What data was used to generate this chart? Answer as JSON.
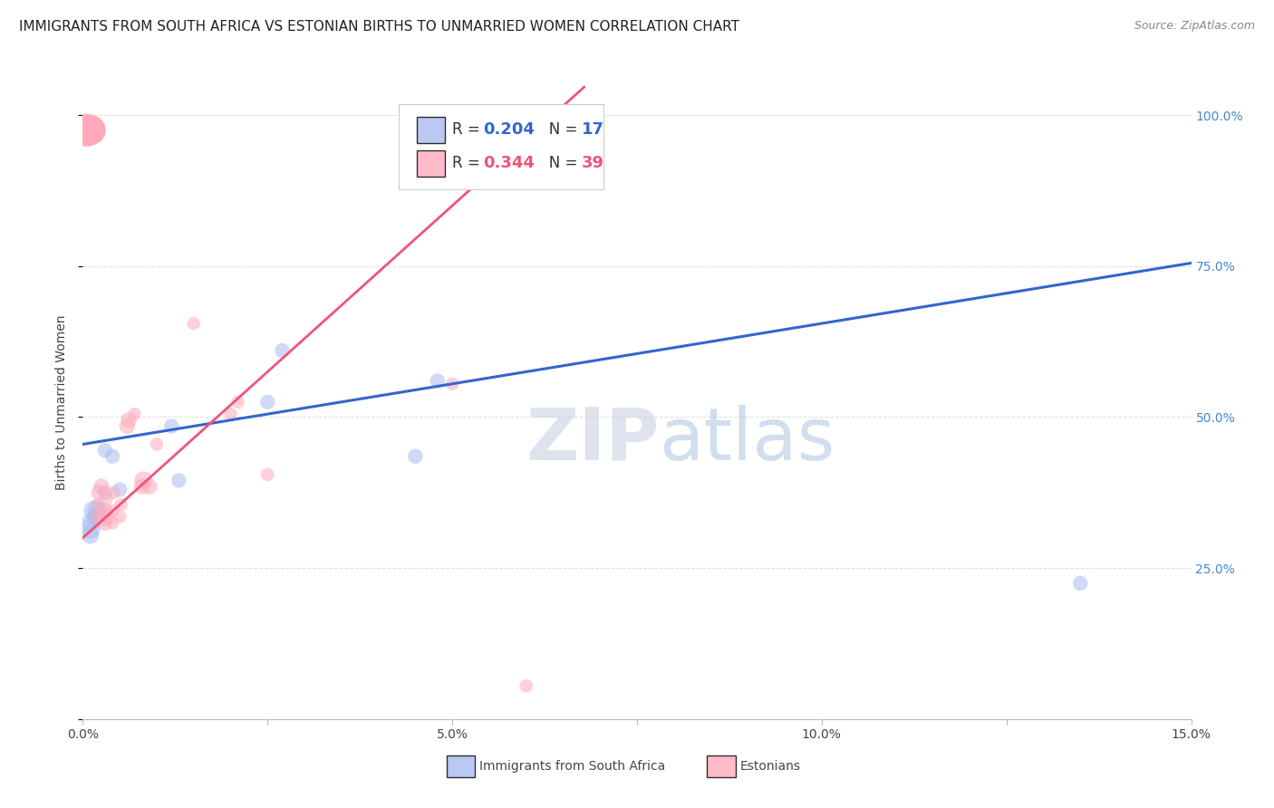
{
  "title": "IMMIGRANTS FROM SOUTH AFRICA VS ESTONIAN BIRTHS TO UNMARRIED WOMEN CORRELATION CHART",
  "source": "Source: ZipAtlas.com",
  "ylabel": "Births to Unmarried Women",
  "xlim": [
    0.0,
    0.15
  ],
  "ylim": [
    0.0,
    1.05
  ],
  "xticks": [
    0.0,
    0.025,
    0.05,
    0.075,
    0.1,
    0.125,
    0.15
  ],
  "xticklabels": [
    "0.0%",
    "",
    "5.0%",
    "",
    "10.0%",
    "",
    "15.0%"
  ],
  "yticks": [
    0.0,
    0.25,
    0.5,
    0.75,
    1.0
  ],
  "yticklabels": [
    "",
    "25.0%",
    "50.0%",
    "75.0%",
    "100.0%"
  ],
  "grid_color": "#e0e0e0",
  "blue_color": "#aabbee",
  "pink_color": "#ffaabb",
  "blue_line_color": "#3366cc",
  "pink_line_color": "#ee5577",
  "R_blue": 0.204,
  "N_blue": 17,
  "R_pink": 0.344,
  "N_pink": 39,
  "blue_intercept": 0.455,
  "blue_slope": 2.0,
  "pink_intercept": 0.3,
  "pink_slope": 11.0,
  "blue_x": [
    0.001,
    0.001,
    0.001,
    0.0015,
    0.002,
    0.002,
    0.003,
    0.003,
    0.004,
    0.005,
    0.012,
    0.013,
    0.025,
    0.027,
    0.045,
    0.048,
    0.135
  ],
  "blue_y": [
    0.305,
    0.315,
    0.325,
    0.345,
    0.335,
    0.345,
    0.375,
    0.445,
    0.435,
    0.38,
    0.485,
    0.395,
    0.525,
    0.61,
    0.435,
    0.56,
    0.225
  ],
  "pink_x": [
    0.0002,
    0.0002,
    0.0002,
    0.0003,
    0.0004,
    0.0005,
    0.001,
    0.001,
    0.001,
    0.001,
    0.001,
    0.0012,
    0.0013,
    0.002,
    0.002,
    0.0022,
    0.0025,
    0.003,
    0.003,
    0.003,
    0.0032,
    0.004,
    0.004,
    0.0042,
    0.005,
    0.0052,
    0.006,
    0.0062,
    0.007,
    0.008,
    0.0082,
    0.009,
    0.01,
    0.015,
    0.02,
    0.021,
    0.025,
    0.05,
    0.06
  ],
  "pink_y": [
    0.975,
    0.975,
    0.975,
    0.975,
    0.975,
    0.975,
    0.975,
    0.975,
    0.975,
    0.975,
    0.975,
    0.975,
    0.975,
    0.335,
    0.355,
    0.375,
    0.385,
    0.325,
    0.335,
    0.345,
    0.365,
    0.325,
    0.345,
    0.375,
    0.335,
    0.355,
    0.485,
    0.495,
    0.505,
    0.385,
    0.395,
    0.385,
    0.455,
    0.655,
    0.505,
    0.525,
    0.405,
    0.555,
    0.055
  ],
  "watermark_zip": "ZIP",
  "watermark_atlas": "atlas",
  "background_color": "#ffffff",
  "title_fontsize": 11,
  "axis_label_color": "#444444",
  "tick_color_right": "#4488cc",
  "alpha_blue": 0.55,
  "alpha_pink": 0.55
}
